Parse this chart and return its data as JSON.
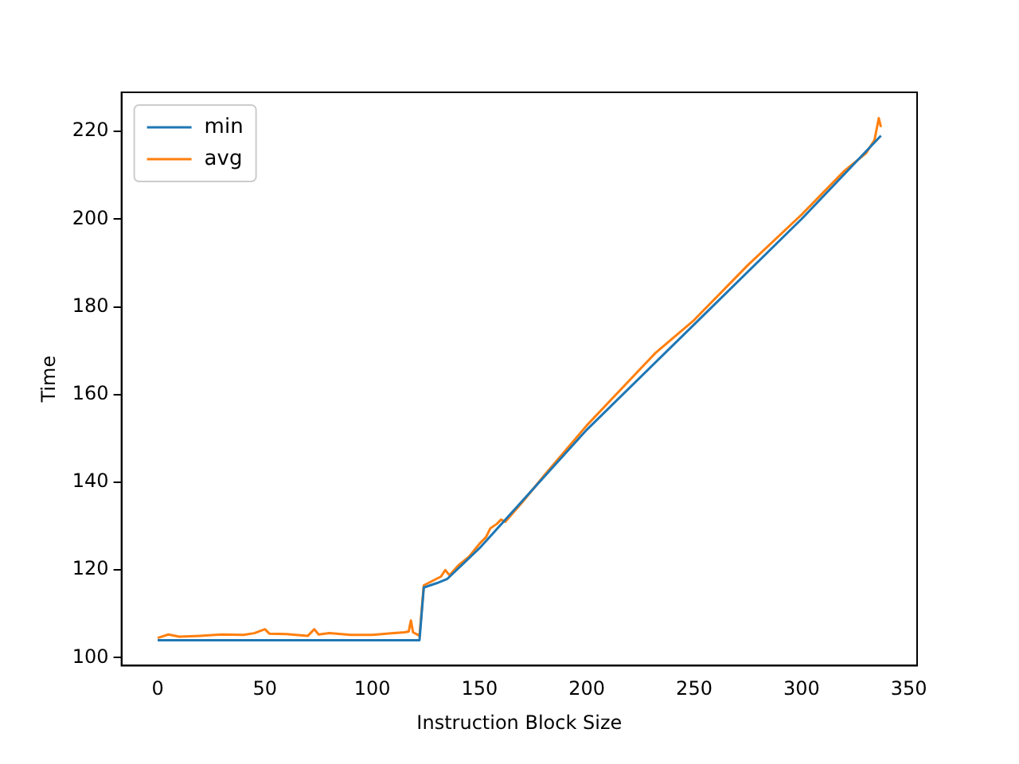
{
  "chart_data": {
    "type": "line",
    "xlabel": "Instruction Block Size",
    "ylabel": "Time",
    "xlim": [
      -16.85,
      353.85
    ],
    "ylim": [
      98.2,
      228.9
    ],
    "xticks": [
      0,
      50,
      100,
      150,
      200,
      250,
      300,
      350
    ],
    "yticks": [
      100,
      120,
      140,
      160,
      180,
      200,
      220
    ],
    "grid": false,
    "legend": "top left",
    "marker": "none",
    "line_style": "solid",
    "series": [
      {
        "name": "min",
        "color": "#1f77b4",
        "x": [
          0,
          60,
          122,
          124,
          130,
          135,
          150,
          200,
          250,
          300,
          337
        ],
        "values": [
          104,
          104,
          104,
          116,
          117,
          118,
          125,
          152,
          176,
          200,
          219
        ]
      },
      {
        "name": "avg",
        "color": "#ff7f0e",
        "x": [
          0,
          5,
          10,
          20,
          30,
          40,
          45,
          50,
          52,
          60,
          70,
          73,
          75,
          80,
          90,
          100,
          110,
          115,
          117,
          118,
          119,
          122,
          124,
          128,
          130,
          132,
          134,
          136,
          140,
          145,
          150,
          153,
          155,
          158,
          160,
          162,
          170,
          180,
          200,
          230,
          232,
          250,
          275,
          300,
          320,
          325,
          330,
          334,
          336,
          337
        ],
        "values": [
          104.5,
          105.3,
          104.8,
          105,
          105.3,
          105.2,
          105.6,
          106.5,
          105.5,
          105.4,
          105,
          106.5,
          105.3,
          105.6,
          105.2,
          105.2,
          105.6,
          105.8,
          106,
          108.5,
          105.8,
          105,
          116.5,
          117.5,
          118,
          118.5,
          120,
          118.8,
          121,
          123,
          126,
          127.5,
          129.5,
          130.5,
          131.5,
          131,
          135.5,
          141.5,
          153,
          168.5,
          169.5,
          177,
          189.5,
          201,
          211,
          213,
          215,
          218,
          223,
          221
        ]
      }
    ]
  }
}
